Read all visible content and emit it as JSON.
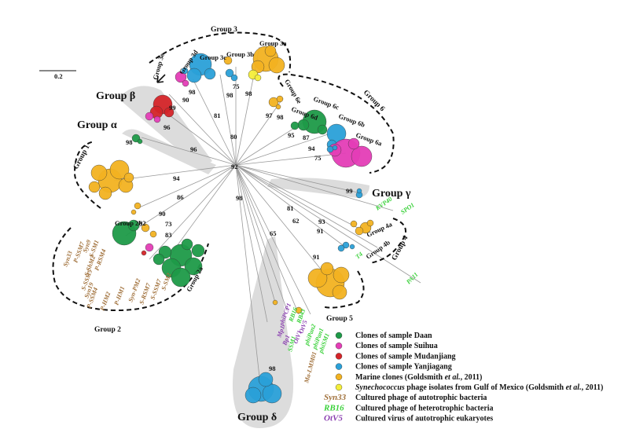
{
  "scale_bar": "0.2",
  "groups": {
    "g1": "Group 1",
    "g2": "Group 2",
    "g2a": "Group 2a",
    "g2b": "Group 2b",
    "g3": "Group 3",
    "g3a": "Group 3a",
    "g3b": "Group 3b",
    "g3c": "Group 3c",
    "g3d": "Group 3d",
    "g3e": "Group 3e",
    "g4": "Group 4",
    "g4a": "Group 4a",
    "g4b": "Group 4b",
    "g5": "Group 5",
    "g6": "Group 6",
    "g6a": "Group 6a",
    "g6b": "Group 6b",
    "g6c": "Group 6c",
    "g6d": "Group 6d",
    "g6e": "Group 6e",
    "alpha": "Group α",
    "beta": "Group β",
    "gamma": "Group γ",
    "delta": "Group δ"
  },
  "bootstrap": [
    98,
    96,
    96,
    99,
    98,
    90,
    81,
    98,
    75,
    98,
    80,
    92,
    97,
    98,
    95,
    87,
    94,
    75,
    99,
    94,
    86,
    90,
    92,
    73,
    83,
    81,
    62,
    93,
    91,
    65,
    91,
    98,
    98
  ],
  "cyanophages": [
    "Syn33",
    "P-SSM7",
    "Syn9",
    "S-SM1",
    "P-RSM4",
    "S-ShM2",
    "S-SSM5",
    "Syn19",
    "P-SSM4",
    "P-HM2",
    "P-HM1",
    "Syn-PM2",
    "S-RSM7",
    "S-SSM7",
    "S-SM2"
  ],
  "heterotrophic_phages": [
    "SPO1",
    "KVP40",
    "T4",
    "PA11",
    "RB16",
    "RB43",
    "phiPan2",
    "phiPan1",
    "phiSM1"
  ],
  "eukaryote_viruses": [
    "OtV5",
    "Mp1",
    "Bp1",
    "OtV1",
    "phiPCP1"
  ],
  "other_labels": [
    "Ma-LMM01",
    "SSM1"
  ],
  "legend": [
    {
      "label": [
        "Clones of sample Daan"
      ]
    },
    {
      "label": [
        "Clones of sample Suihua"
      ]
    },
    {
      "label": [
        "Clones of sample Mudanjiang"
      ]
    },
    {
      "label": [
        "Clones of sample Yanjiagang"
      ]
    },
    {
      "label": [
        "Marine clones (Goldsmith ",
        "et al.",
        ", 2011)"
      ]
    },
    {
      "label": [
        "Synechococcus",
        " phage isolates from Gulf of Mexico (Goldsmith ",
        "et al.",
        ", 2011)"
      ]
    },
    {
      "key": "Syn33",
      "label": [
        "Cultured phage of autotrophic bacteria"
      ]
    },
    {
      "key": "RB16",
      "label": [
        "Cultured phage of heterotrophic bacteria"
      ]
    },
    {
      "key": "OtV5",
      "label": [
        "Cultured virus of autotrophic eukaryotes"
      ]
    }
  ]
}
